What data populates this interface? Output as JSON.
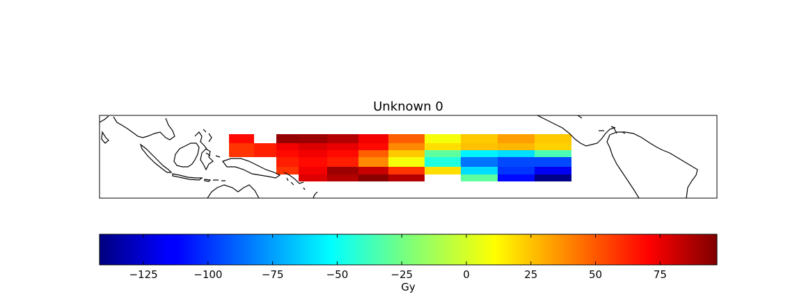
{
  "chart_data": {
    "type": "heatmap",
    "title": "Unknown 0",
    "colorbar": {
      "label": "Gy",
      "range": [
        -142,
        97
      ],
      "ticks": [
        -125,
        -100,
        -75,
        -50,
        -25,
        0,
        25,
        50,
        75
      ],
      "tick_labels": [
        "−125",
        "−100",
        "−75",
        "−50",
        "−25",
        "0",
        "25",
        "50",
        "75"
      ]
    },
    "map": {
      "coastlines": true,
      "region": "tropical Pacific"
    },
    "grid": {
      "rows": [
        [
          65,
          null,
          92,
          90,
          85,
          70,
          45,
          5,
          20,
          30,
          20
        ],
        [
          55,
          60,
          70,
          75,
          72,
          65,
          35,
          15,
          22,
          24,
          18
        ],
        [
          55,
          60,
          65,
          70,
          65,
          45,
          20,
          -30,
          -55,
          -60,
          -35
        ],
        [
          null,
          null,
          60,
          65,
          60,
          35,
          5,
          -45,
          -85,
          -95,
          -95
        ],
        [
          null,
          null,
          55,
          70,
          90,
          80,
          55,
          15,
          -60,
          -100,
          -115
        ],
        [
          null,
          null,
          null,
          75,
          85,
          95,
          85,
          null,
          -30,
          -110,
          -140
        ]
      ]
    }
  }
}
